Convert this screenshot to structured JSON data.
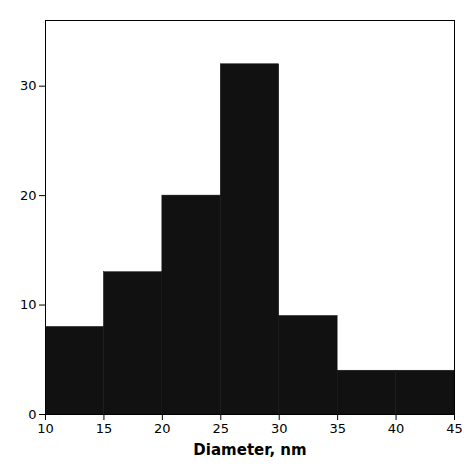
{
  "chart_data": {
    "type": "histogram",
    "bins": [
      10,
      15,
      20,
      25,
      30,
      35,
      40,
      45
    ],
    "counts": [
      8,
      13,
      20,
      32,
      9,
      4,
      4
    ],
    "color": "#111111",
    "xlabel": "Diameter, nm",
    "xlim": [
      10,
      45
    ],
    "ylim": [
      0,
      36
    ],
    "xticks": [
      10,
      15,
      20,
      25,
      30,
      35,
      40,
      45
    ],
    "yticks": [
      0,
      10,
      20,
      30
    ],
    "grid": false
  }
}
